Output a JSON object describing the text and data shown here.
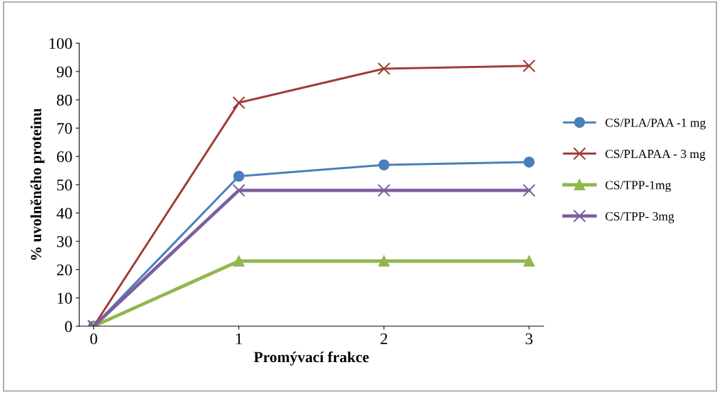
{
  "chart_data": {
    "type": "line",
    "xlabel": "Promývací frakce",
    "ylabel": "% uvolněného proteinu",
    "x": [
      0,
      1,
      2,
      3
    ],
    "xlim": [
      -0.1,
      3.1
    ],
    "xticks": [
      0,
      1,
      2,
      3
    ],
    "ylim": [
      0,
      100
    ],
    "yticks": [
      0,
      10,
      20,
      30,
      40,
      50,
      60,
      70,
      80,
      90,
      100
    ],
    "grid": false,
    "legend": "right",
    "line_style": "solid",
    "series": [
      {
        "name": "CS/PLA/PAA -1 mg",
        "color": "#4a7ebb",
        "marker": "circle",
        "values": [
          0,
          53,
          57,
          58
        ]
      },
      {
        "name": "CS/PLAPAA - 3 mg",
        "color": "#a03c38",
        "marker": "cross",
        "values": [
          0,
          79,
          91,
          92
        ]
      },
      {
        "name": "CS/TPP-1mg",
        "color": "#92b74e",
        "marker": "triangle",
        "values": [
          0,
          23,
          23,
          23
        ]
      },
      {
        "name": "CS/TPP- 3mg",
        "color": "#7d5fa0",
        "marker": "cross",
        "values": [
          0,
          48,
          48,
          48
        ]
      }
    ]
  }
}
